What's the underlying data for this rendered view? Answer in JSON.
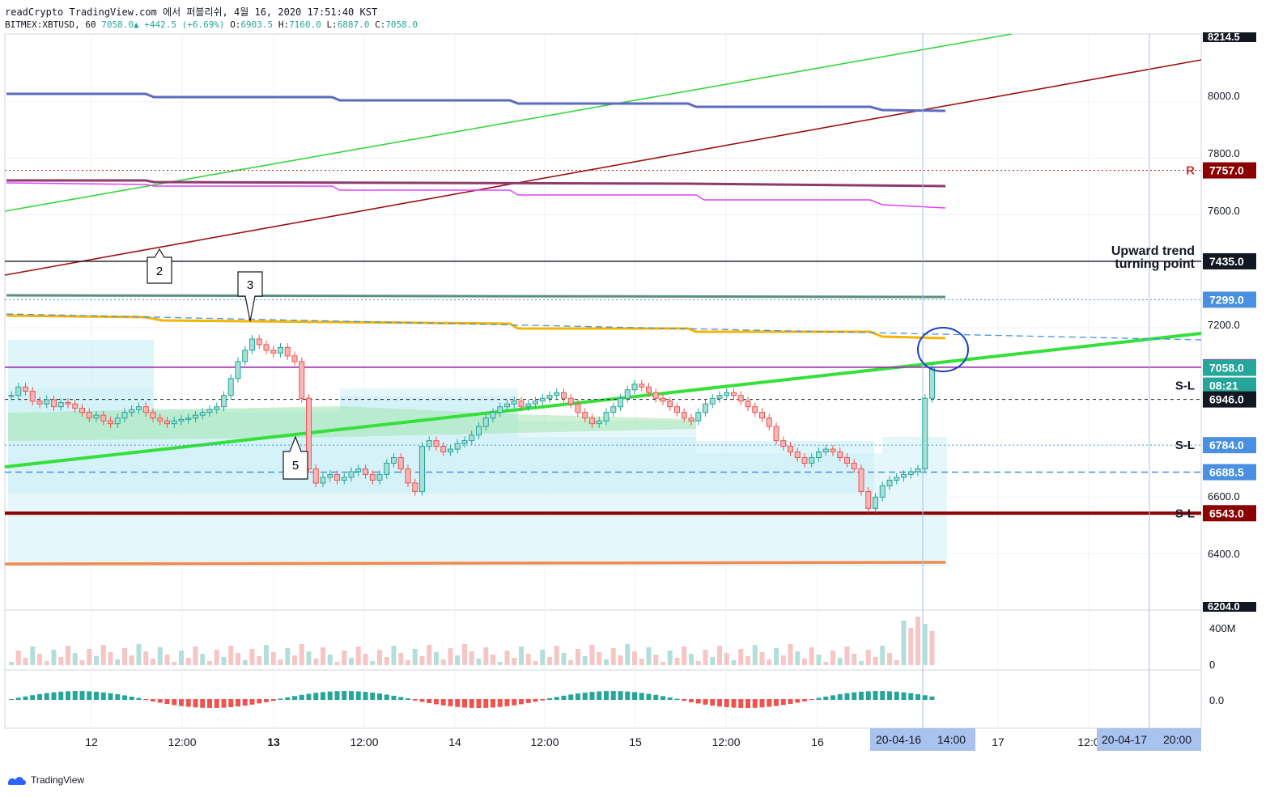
{
  "header": {
    "publish_line": "readCrypto TradingView.com 에서 퍼블리쉬, 4월 16, 2020 17:51:40 KST",
    "symbol": "BITMEX:XBTUSD, 60",
    "last": "7058.0",
    "change": "+442.5 (+6.69%)",
    "o_label": "O:",
    "o": "6903.5",
    "h_label": "H:",
    "h": "7160.0",
    "l_label": "L:",
    "l": "6887.0",
    "c_label": "C:",
    "c": "7058.0"
  },
  "footer": {
    "brand": "TradingView"
  },
  "colors": {
    "up": "#26a69a",
    "down": "#ef5350",
    "accent": "#2962ff"
  },
  "chart_data": {
    "type": "candlestick",
    "y_range": [
      6200,
      8240
    ],
    "price_ticks": [
      "8000.0",
      "7800.0",
      "7600.0",
      "7200.0",
      "6600.0",
      "6400.0"
    ],
    "top_clip_label": "8214.5",
    "bottom_clip_label": "6204.0",
    "price_labels": [
      {
        "value": "7757.0",
        "price": 7757,
        "color": "#8b0000",
        "tag": "R"
      },
      {
        "value": "7435.0",
        "price": 7435,
        "color": "#131722",
        "tag": ""
      },
      {
        "value": "7299.0",
        "price": 7299,
        "color": "#4a90e2",
        "tag": ""
      },
      {
        "value": "7060.0",
        "price": 7060,
        "color": "#9c27b0",
        "tag": ""
      },
      {
        "value": "7058.0",
        "price": 7058,
        "color": "#26a69a",
        "tag": ""
      },
      {
        "value": "08:21",
        "price": 6995,
        "color": "#26a69a",
        "tag": "S-L"
      },
      {
        "value": "6946.0",
        "price": 6946,
        "color": "#131722",
        "tag": ""
      },
      {
        "value": "6784.0",
        "price": 6784,
        "color": "#4a90e2",
        "tag": "S-L"
      },
      {
        "value": "6688.5",
        "price": 6688.5,
        "color": "#4a90e2",
        "tag": ""
      },
      {
        "value": "6543.0",
        "price": 6543,
        "color": "#8b0000",
        "tag": "S-L"
      }
    ],
    "annotation": [
      "Upward trend",
      "turning point"
    ],
    "callouts": [
      "2",
      "3",
      "5"
    ],
    "volume_ticks": [
      "400M",
      "0"
    ],
    "macd_ticks": [
      "0.0"
    ],
    "x_ticks": [
      "12",
      "12:00",
      "13",
      "12:00",
      "14",
      "12:00",
      "15",
      "12:00",
      "16",
      "17",
      "12:0"
    ],
    "x_highlights": [
      {
        "date": "20-04-16",
        "time": "14:00"
      },
      {
        "date": "20-04-17",
        "time": "20:00"
      }
    ],
    "candles_close": [
      6960,
      6990,
      6975,
      6940,
      6930,
      6945,
      6920,
      6935,
      6930,
      6915,
      6900,
      6880,
      6890,
      6870,
      6860,
      6880,
      6900,
      6910,
      6920,
      6900,
      6880,
      6870,
      6860,
      6870,
      6875,
      6880,
      6890,
      6900,
      6910,
      6920,
      6960,
      7020,
      7080,
      7120,
      7160,
      7140,
      7120,
      7110,
      7130,
      7100,
      7080,
      6950,
      6700,
      6650,
      6670,
      6680,
      6660,
      6670,
      6690,
      6700,
      6680,
      6660,
      6680,
      6720,
      6740,
      6700,
      6650,
      6620,
      6780,
      6800,
      6780,
      6760,
      6770,
      6790,
      6800,
      6820,
      6850,
      6880,
      6900,
      6920,
      6930,
      6940,
      6920,
      6930,
      6940,
      6950,
      6960,
      6970,
      6950,
      6930,
      6900,
      6880,
      6860,
      6870,
      6900,
      6920,
      6950,
      6980,
      7000,
      6990,
      6970,
      6950,
      6940,
      6920,
      6900,
      6880,
      6870,
      6900,
      6930,
      6950,
      6960,
      6970,
      6960,
      6940,
      6920,
      6900,
      6880,
      6850,
      6800,
      6780,
      6760,
      6740,
      6720,
      6740,
      6760,
      6770,
      6760,
      6740,
      6720,
      6700,
      6620,
      6560,
      6600,
      6640,
      6660,
      6670,
      6680,
      6690,
      6700,
      6950,
      7058
    ]
  }
}
